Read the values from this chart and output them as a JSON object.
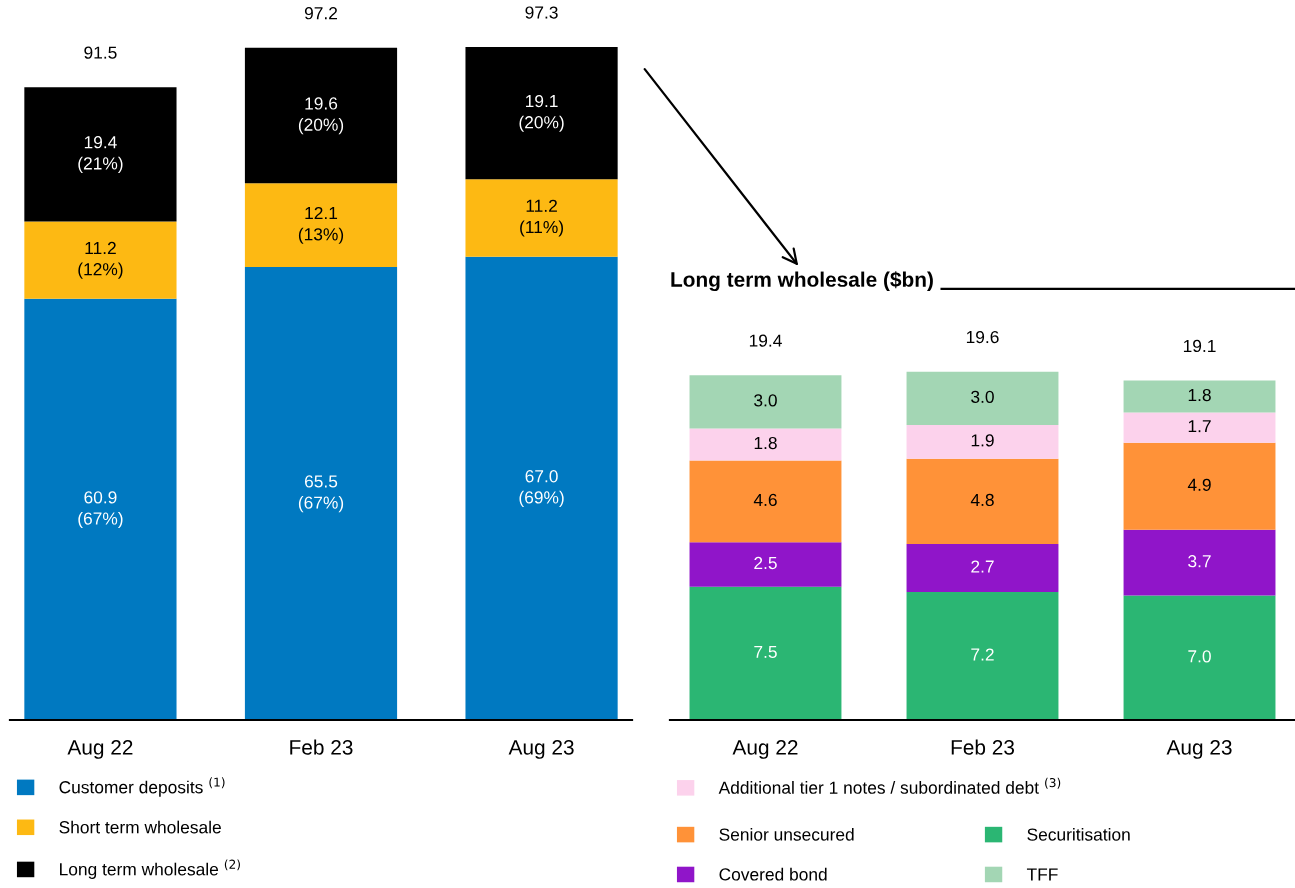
{
  "chart_data": [
    {
      "type": "bar",
      "stacked": true,
      "categories": [
        "Aug 22",
        "Feb 23",
        "Aug 23"
      ],
      "legend": "bottom",
      "series": [
        {
          "name": "Customer deposits $^{(1)}$",
          "color": "#0079c1",
          "values": [
            60.9,
            65.5,
            67.0
          ],
          "value_labels": [
            "60.9\n(67%)",
            "65.5\n(67%)",
            "67.0\n(69%)"
          ]
        },
        {
          "name": "Short term wholesale",
          "color": "#fdb913",
          "values": [
            11.2,
            12.1,
            11.2
          ],
          "value_labels": [
            "11.2\n(12%)",
            "12.1\n(13%)",
            "11.2\n(11%)"
          ]
        },
        {
          "name": "Long term wholesale $^{(2)}$",
          "color": "#000000",
          "values": [
            19.4,
            19.6,
            19.1
          ],
          "value_labels": [
            "19.4\n(21%)",
            "19.6\n(20%)",
            "19.1\n(20%)"
          ]
        }
      ],
      "totals": [
        "91.5",
        "97.2",
        "97.3"
      ]
    },
    {
      "type": "bar",
      "stacked": true,
      "title": "Long term wholesale ($bn)",
      "categories": [
        "Aug 22",
        "Feb 23",
        "Aug 23"
      ],
      "legend": "bottom",
      "series": [
        {
          "name": "Securitisation",
          "color": "#2bb673",
          "values": [
            7.5,
            7.2,
            7.0
          ],
          "value_labels": [
            "7.5",
            "7.2",
            "7.0"
          ]
        },
        {
          "name": "Covered bond",
          "color": "#9015c9",
          "values": [
            2.5,
            2.7,
            3.7
          ],
          "value_labels": [
            "2.5",
            "2.7",
            "3.7"
          ]
        },
        {
          "name": "Senior unsecured",
          "color": "#ff9238",
          "values": [
            4.6,
            4.8,
            4.9
          ],
          "value_labels": [
            "4.6",
            "4.8",
            "4.9"
          ]
        },
        {
          "name": "Additional tier 1 notes / subordinated debt $^{(3)}$",
          "color": "#fcd2ec",
          "values": [
            1.8,
            1.9,
            1.7
          ],
          "value_labels": [
            "1.8",
            "1.9",
            "1.7"
          ]
        },
        {
          "name": "TFF",
          "color": "#a3d6b4",
          "values": [
            3.0,
            3.0,
            1.8
          ],
          "value_labels": [
            "3.0",
            "3.0",
            "1.8"
          ]
        }
      ],
      "totals": [
        "19.4",
        "19.6",
        "19.1"
      ]
    }
  ]
}
